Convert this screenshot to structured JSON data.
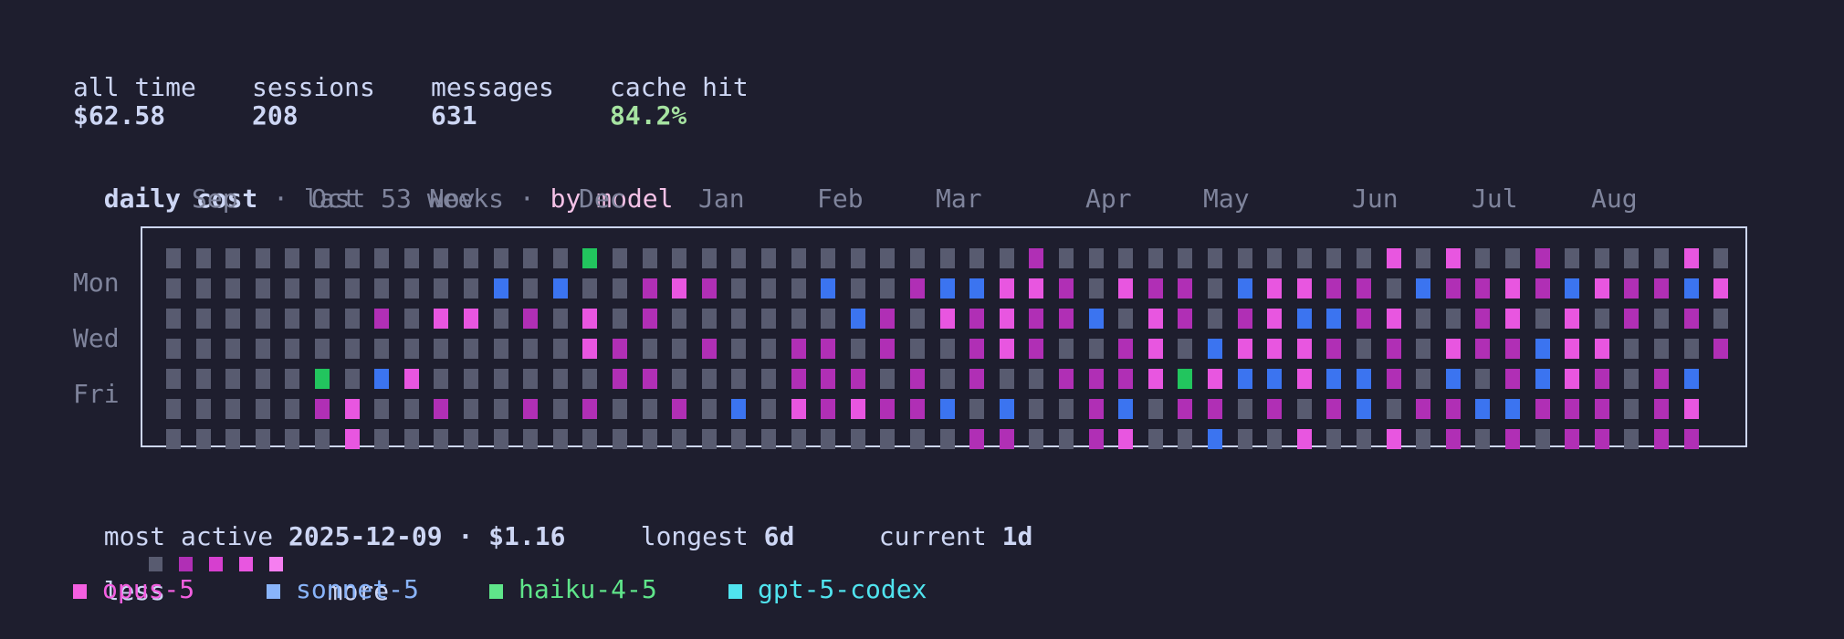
{
  "stats": [
    {
      "label": "all time",
      "value": "$62.58"
    },
    {
      "label": "sessions",
      "value": "208"
    },
    {
      "label": "messages",
      "value": "631"
    },
    {
      "label": "cache hit",
      "value": "84.2%"
    }
  ],
  "title": {
    "main": "daily cost",
    "sep1": " · ",
    "range": "last 53 weeks",
    "sep2": " · ",
    "mode": "by model"
  },
  "months": [
    "Sep",
    "Oct",
    "Nov",
    "Dec",
    "Jan",
    "Feb",
    "Mar",
    "Apr",
    "May",
    "Jun",
    "Jul",
    "Aug"
  ],
  "days": [
    "Mon",
    "Wed",
    "Fri"
  ],
  "footer": {
    "most_active_label": "most active",
    "most_active_value": "2025-12-09 · $1.16",
    "longest_label": "longest",
    "longest_value": "6d",
    "current_label": "current",
    "current_value": "1d"
  },
  "legend": {
    "less": "less",
    "more": "more",
    "scale_colors": [
      "#585b70",
      "#b02fb5",
      "#d63fcf",
      "#e856e0",
      "#f67ef0"
    ],
    "models": [
      {
        "name": "opus-5",
        "color": "#f35fe0"
      },
      {
        "name": "sonnet-5",
        "color": "#89b4fa"
      },
      {
        "name": "haiku-4-5",
        "color": "#5fe58a"
      },
      {
        "name": "gpt-5-codex",
        "color": "#50e3ee"
      }
    ]
  },
  "colors": {
    "background": "#1e1e2e",
    "empty": "#585b70",
    "opus_levels": [
      "#b02fb5",
      "#d63fcf",
      "#e856e0",
      "#f67ef0"
    ],
    "sonnet_levels": [
      "#3b74f0",
      "#5a8ff5",
      "#7aa8fa"
    ],
    "haiku": "#22c55e",
    "cache_hit": "#a6e3a1"
  },
  "heatmap": {
    "weeks": 53,
    "cells": "C1.\nA2.\nA3.\nA4.\nA5.\nA6.\nA7.\nA8.\nA9.\nA10.\nA11.\nA12.\nA13.\nA14.\nA15.\nA16.\nA17.\nA18.\nA19.\nA20.\nA21.\nA22.\nA23.\nA24.\nA25.\nA26.\nA27.\nA28.\nA29.\nA30.\nA31.\nA32.\nA33.\nA34.\nA35.\nA36.\nA37.\nA38.\nA39.\nA40.\nA41.\nA42.\nA43.\nA44.\nA45.\nA46.\nA47.\nA48.\nA49.\nA50.\nA51.\nA52.\nA53.",
    "grid": [
      "................................................... .",
      "...........s.s..pPp......s...ps.pPp.PpPp.sPPpp.sPpPpsPpsp",
      "...p.Pp.P.P.p.......sp.Ppp.Pps.PpPp.pPssppp..pp.Pp.P.p",
      "................P.p.P..Pp..pPPp..PpPs.PPPpP.pPppspPP.P",
      "....H.sp...........................................",
      "....pp.p.p.p.p..p.s.PpPpp.s.s.pps.ppp.pppssp.pp.spps.",
      "......p.......................pp.Pp..s..P..P.pp.pp.pp"
    ]
  }
}
